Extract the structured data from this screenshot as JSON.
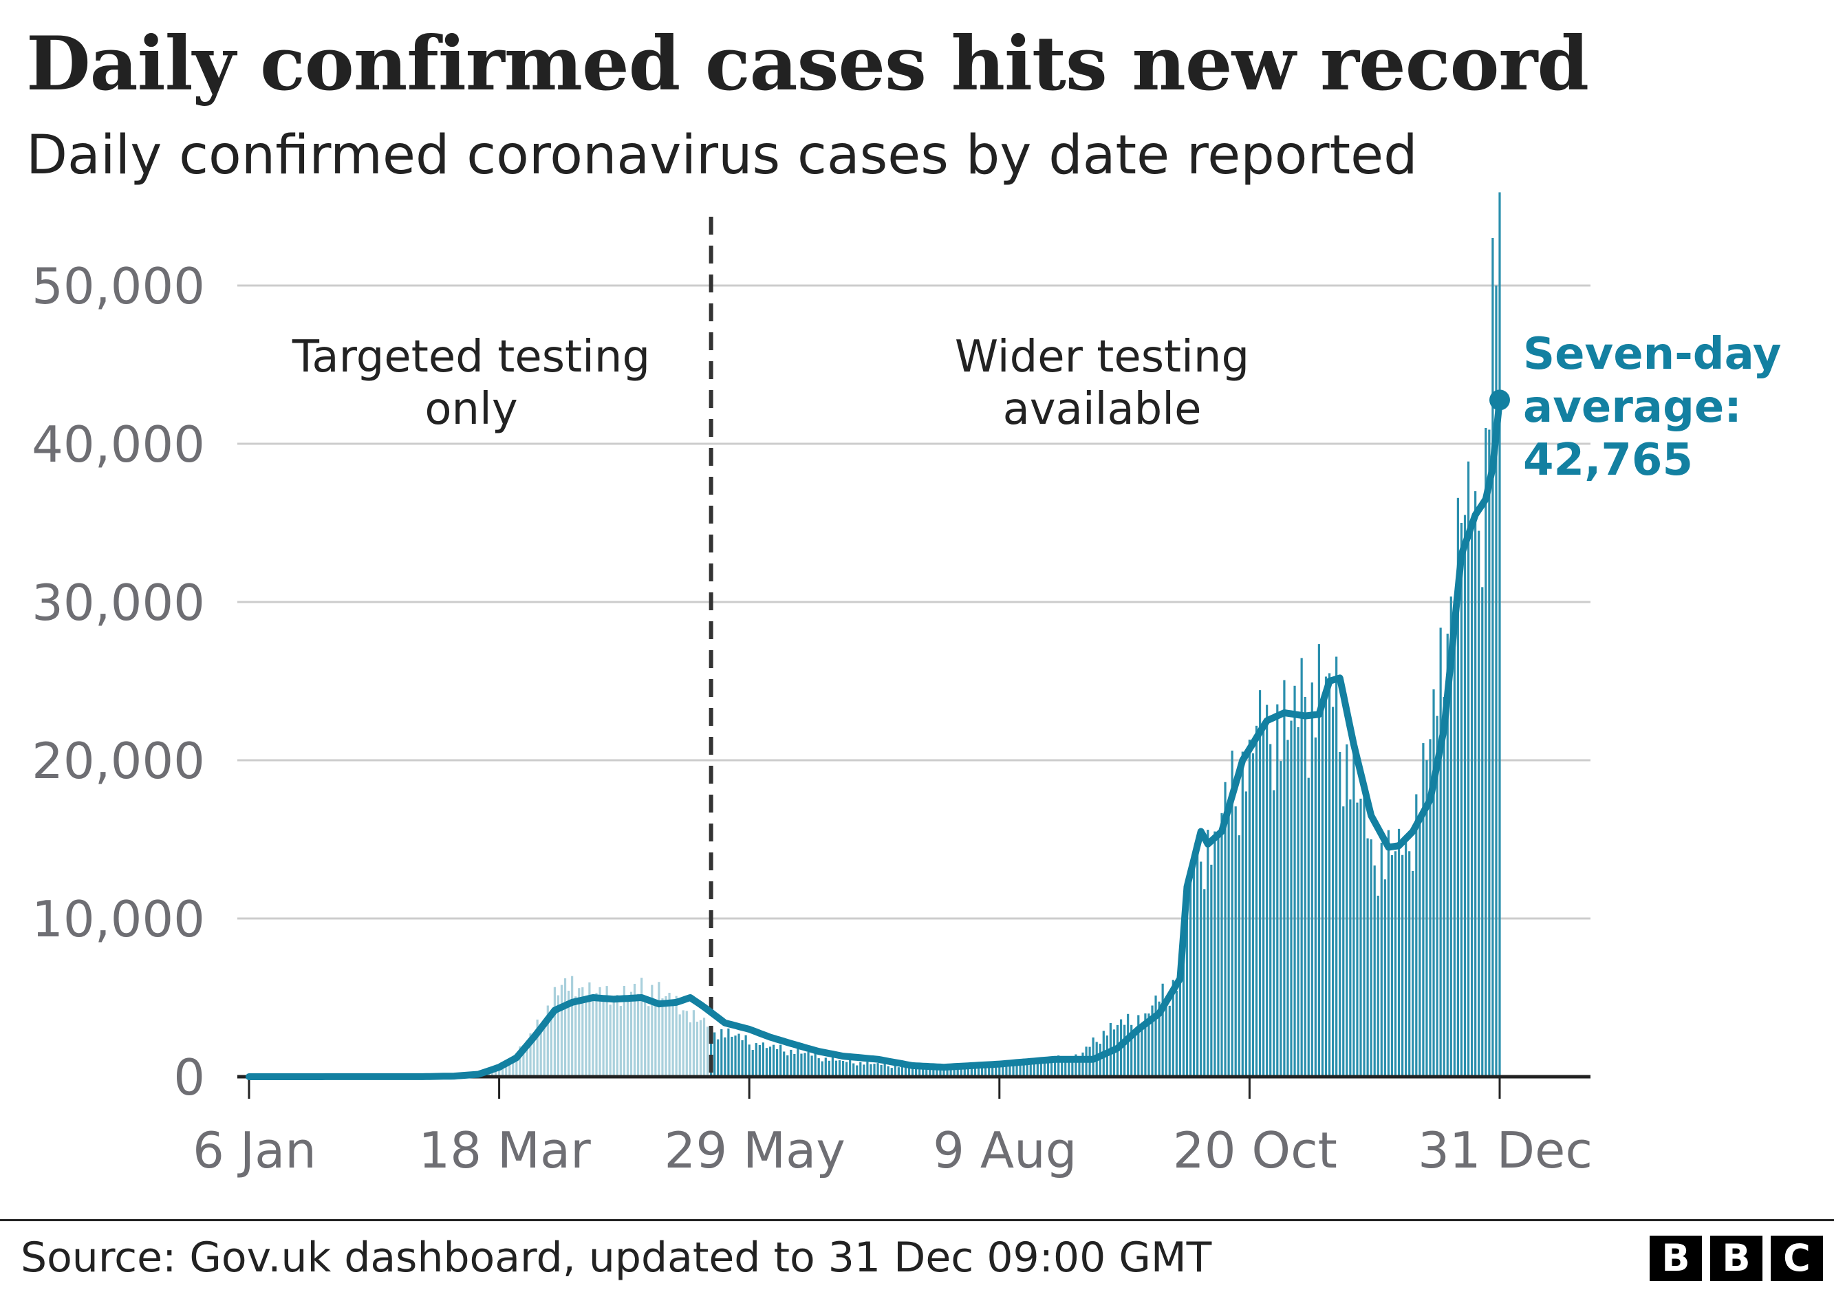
{
  "title": "Daily confirmed cases hits new record",
  "subtitle": "Daily confirmed coronavirus cases by date reported",
  "source": "Source: Gov.uk dashboard, updated to 31 Dec 09:00 GMT",
  "logo": [
    "B",
    "B",
    "C"
  ],
  "colors": {
    "average_line": "#1380a1",
    "bars_wider": "#2a8fad",
    "bars_targeted": "#a9d0dc",
    "grid": "#cccccc",
    "axis_text": "#6e6e73",
    "divider": "#333333"
  },
  "chart_data": {
    "type": "bar",
    "x_axis_type": "date",
    "x_range": [
      "2020-01-06",
      "2020-12-31"
    ],
    "xticks": [
      {
        "date": "2020-01-06",
        "label": "6 Jan"
      },
      {
        "date": "2020-03-18",
        "label": "18 Mar"
      },
      {
        "date": "2020-05-29",
        "label": "29 May"
      },
      {
        "date": "2020-08-09",
        "label": "9 Aug"
      },
      {
        "date": "2020-10-20",
        "label": "20 Oct"
      },
      {
        "date": "2020-12-31",
        "label": "31 Dec"
      }
    ],
    "ylim": [
      0,
      55000
    ],
    "yticks": [
      0,
      10000,
      20000,
      30000,
      40000,
      50000
    ],
    "ytick_labels": [
      "0",
      "10,000",
      "20,000",
      "30,000",
      "40,000",
      "50,000"
    ],
    "grid": true,
    "divider": {
      "date": "2020-05-18"
    },
    "period_labels": [
      {
        "lines": [
          "Targeted testing",
          "only"
        ]
      },
      {
        "lines": [
          "Wider testing",
          "available"
        ]
      }
    ],
    "daily_cases_anchors": [
      [
        "2020-01-06",
        0
      ],
      [
        "2020-02-20",
        10
      ],
      [
        "2020-03-01",
        30
      ],
      [
        "2020-03-10",
        60
      ],
      [
        "2020-03-15",
        300
      ],
      [
        "2020-03-20",
        700
      ],
      [
        "2020-03-25",
        2000
      ],
      [
        "2020-03-28",
        2800
      ],
      [
        "2020-04-01",
        4500
      ],
      [
        "2020-04-05",
        5800
      ],
      [
        "2020-04-10",
        5600
      ],
      [
        "2020-04-20",
        5000
      ],
      [
        "2020-05-01",
        5800
      ],
      [
        "2020-05-10",
        4200
      ],
      [
        "2020-05-18",
        3200
      ],
      [
        "2020-05-25",
        2600
      ],
      [
        "2020-06-01",
        2000
      ],
      [
        "2020-06-10",
        1700
      ],
      [
        "2020-06-20",
        1200
      ],
      [
        "2020-06-25",
        1000
      ],
      [
        "2020-07-10",
        700
      ],
      [
        "2020-07-15",
        650
      ],
      [
        "2020-08-01",
        750
      ],
      [
        "2020-08-10",
        900
      ],
      [
        "2020-08-20",
        1100
      ],
      [
        "2020-09-01",
        1300
      ],
      [
        "2020-09-08",
        2900
      ],
      [
        "2020-09-20",
        4000
      ],
      [
        "2020-09-30",
        6500
      ],
      [
        "2020-10-03",
        12800
      ],
      [
        "2020-10-05",
        15000
      ],
      [
        "2020-10-10",
        15500
      ],
      [
        "2020-10-20",
        21300
      ],
      [
        "2020-10-25",
        23500
      ],
      [
        "2020-11-01",
        22500
      ],
      [
        "2020-11-05",
        24000
      ],
      [
        "2020-11-12",
        25500
      ],
      [
        "2020-11-17",
        21000
      ],
      [
        "2020-11-24",
        15000
      ],
      [
        "2020-11-30",
        14000
      ],
      [
        "2020-12-04",
        15000
      ],
      [
        "2020-12-10",
        20000
      ],
      [
        "2020-12-16",
        28000
      ],
      [
        "2020-12-20",
        35000
      ],
      [
        "2020-12-24",
        37000
      ],
      [
        "2020-12-27",
        41000
      ],
      [
        "2020-12-29",
        53000
      ],
      [
        "2020-12-30",
        50000
      ],
      [
        "2020-12-31",
        55892
      ]
    ],
    "seven_day_average_anchors": [
      [
        "2020-01-06",
        0
      ],
      [
        "2020-02-25",
        5
      ],
      [
        "2020-03-05",
        40
      ],
      [
        "2020-03-12",
        150
      ],
      [
        "2020-03-18",
        600
      ],
      [
        "2020-03-23",
        1200
      ],
      [
        "2020-03-28",
        2500
      ],
      [
        "2020-04-03",
        4200
      ],
      [
        "2020-04-08",
        4700
      ],
      [
        "2020-04-14",
        5000
      ],
      [
        "2020-04-20",
        4900
      ],
      [
        "2020-04-28",
        5000
      ],
      [
        "2020-05-03",
        4600
      ],
      [
        "2020-05-08",
        4700
      ],
      [
        "2020-05-12",
        5000
      ],
      [
        "2020-05-16",
        4400
      ],
      [
        "2020-05-22",
        3400
      ],
      [
        "2020-05-29",
        3000
      ],
      [
        "2020-06-04",
        2500
      ],
      [
        "2020-06-10",
        2100
      ],
      [
        "2020-06-18",
        1600
      ],
      [
        "2020-06-25",
        1300
      ],
      [
        "2020-07-05",
        1100
      ],
      [
        "2020-07-15",
        700
      ],
      [
        "2020-07-24",
        600
      ],
      [
        "2020-08-09",
        800
      ],
      [
        "2020-08-25",
        1100
      ],
      [
        "2020-09-05",
        1100
      ],
      [
        "2020-09-12",
        1800
      ],
      [
        "2020-09-18",
        3000
      ],
      [
        "2020-09-24",
        4000
      ],
      [
        "2020-09-30",
        6200
      ],
      [
        "2020-10-02",
        12000
      ],
      [
        "2020-10-06",
        15500
      ],
      [
        "2020-10-08",
        14700
      ],
      [
        "2020-10-12",
        15500
      ],
      [
        "2020-10-18",
        20000
      ],
      [
        "2020-10-25",
        22500
      ],
      [
        "2020-10-30",
        23000
      ],
      [
        "2020-11-05",
        22800
      ],
      [
        "2020-11-09",
        22900
      ],
      [
        "2020-11-12",
        25000
      ],
      [
        "2020-11-15",
        25200
      ],
      [
        "2020-11-19",
        21000
      ],
      [
        "2020-11-24",
        16500
      ],
      [
        "2020-11-29",
        14500
      ],
      [
        "2020-12-02",
        14600
      ],
      [
        "2020-12-06",
        15500
      ],
      [
        "2020-12-11",
        17500
      ],
      [
        "2020-12-15",
        22000
      ],
      [
        "2020-12-20",
        33000
      ],
      [
        "2020-12-24",
        35500
      ],
      [
        "2020-12-27",
        36500
      ],
      [
        "2020-12-29",
        38500
      ],
      [
        "2020-12-31",
        42765
      ]
    ],
    "annotation": {
      "lines": [
        "Seven-day",
        "average:",
        "42,765"
      ],
      "date": "2020-12-31",
      "value": 42765
    }
  }
}
